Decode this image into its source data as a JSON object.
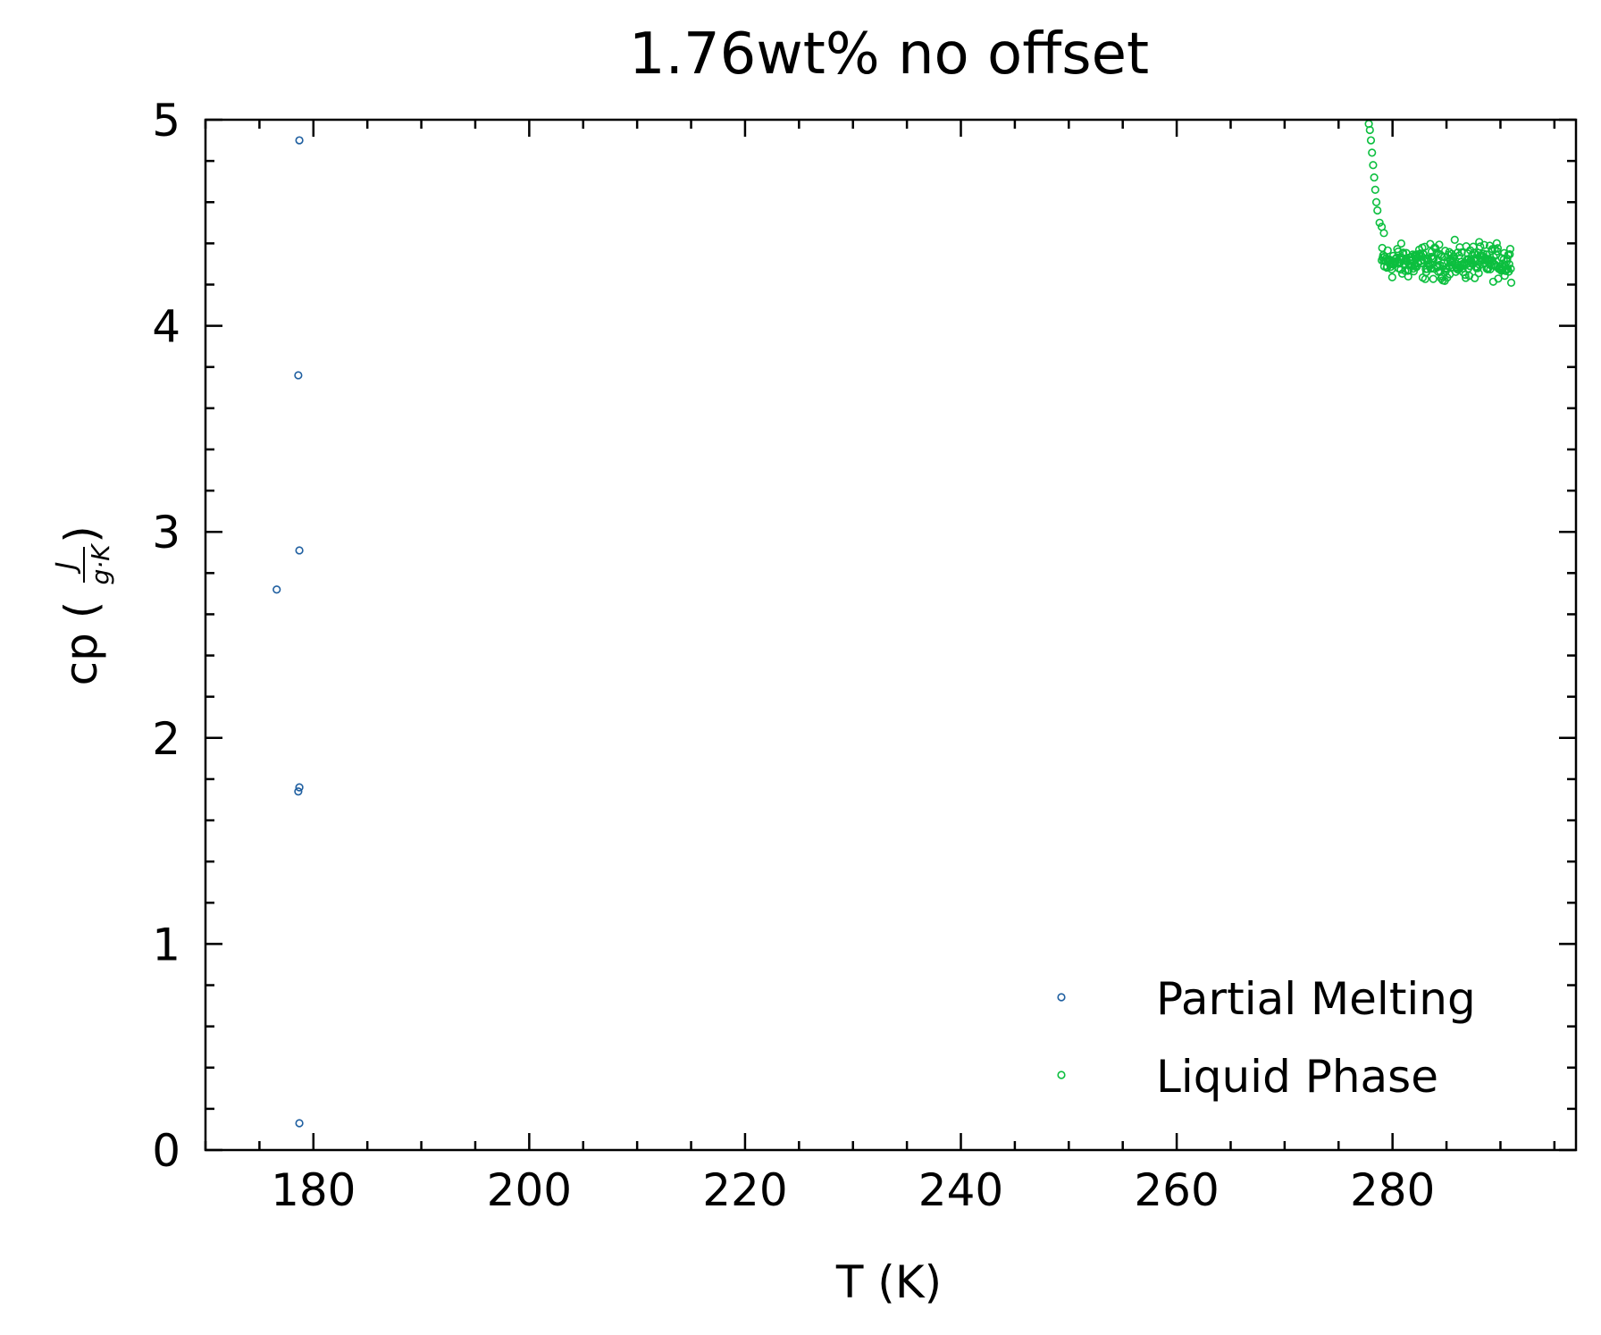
{
  "chart_data": {
    "type": "scatter",
    "title": "1.76wt% no offset",
    "xlabel": "T (K)",
    "ylabel": {
      "prefix": "cp (",
      "num": "J",
      "den": "g·K",
      "suffix": ")"
    },
    "xlim": [
      170,
      297
    ],
    "ylim": [
      0,
      5
    ],
    "xticks": [
      180,
      200,
      220,
      240,
      260,
      280
    ],
    "yticks": [
      0,
      1,
      2,
      3,
      4,
      5
    ],
    "x_minor_step": 5,
    "y_minor_step": 0.2,
    "grid": false,
    "legend_position": "lower-right",
    "series": [
      {
        "name": "Partial Melting",
        "color": "#1f5fa0",
        "points": [
          [
            178.7,
            4.9
          ],
          [
            178.6,
            3.76
          ],
          [
            178.7,
            2.91
          ],
          [
            176.6,
            2.72
          ],
          [
            178.7,
            1.76
          ],
          [
            178.6,
            1.74
          ],
          [
            178.7,
            0.13
          ]
        ]
      },
      {
        "name": "Liquid Phase",
        "color": "#0cbf3f",
        "curve": [
          [
            277.8,
            4.98
          ],
          [
            277.9,
            4.95
          ],
          [
            278.0,
            4.9
          ],
          [
            278.1,
            4.84
          ],
          [
            278.2,
            4.78
          ],
          [
            278.3,
            4.72
          ],
          [
            278.4,
            4.66
          ],
          [
            278.5,
            4.6
          ],
          [
            278.6,
            4.56
          ],
          [
            278.8,
            4.5
          ],
          [
            279.0,
            4.48
          ],
          [
            279.2,
            4.45
          ]
        ],
        "band": {
          "x_start": 279.0,
          "x_end": 291.0,
          "count": 260,
          "center": 4.31,
          "spread": 0.12
        }
      }
    ]
  }
}
